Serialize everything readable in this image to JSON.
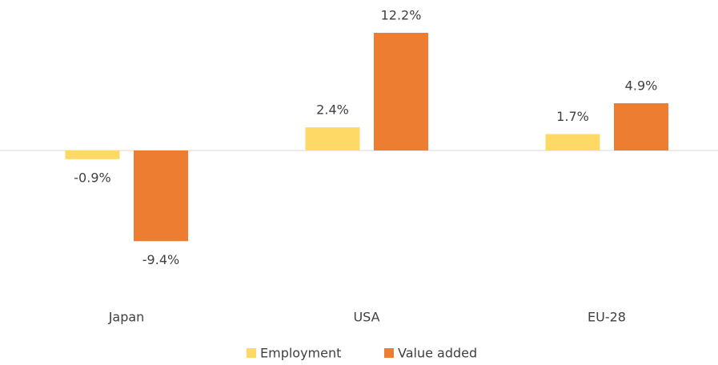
{
  "chart_data": {
    "type": "bar",
    "categories": [
      "Japan",
      "USA",
      "EU-28"
    ],
    "series": [
      {
        "name": "Employment",
        "color": "#ffd966",
        "values": [
          -0.9,
          2.4,
          1.7
        ],
        "value_labels": [
          "-0.9%",
          "2.4%",
          "1.7%"
        ]
      },
      {
        "name": "Value added",
        "color": "#ed7d31",
        "values": [
          -9.4,
          12.2,
          4.9
        ],
        "value_labels": [
          "-9.4%",
          "12.2%",
          "4.9%"
        ]
      }
    ],
    "ylim": [
      -12,
      14
    ]
  }
}
